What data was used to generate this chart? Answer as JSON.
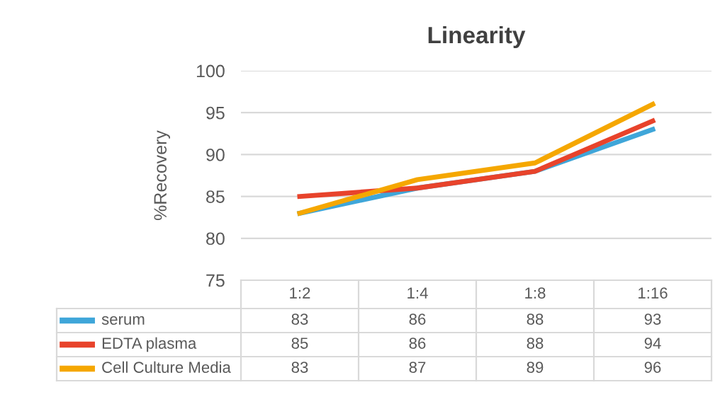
{
  "chart_data": {
    "type": "line",
    "title": "Linearity",
    "ylabel": "%Recovery",
    "categories": [
      "1:2",
      "1:4",
      "1:8",
      "1:16"
    ],
    "series": [
      {
        "name": "serum",
        "color": "#3fa6d9",
        "values": [
          83,
          86,
          88,
          93
        ]
      },
      {
        "name": "EDTA plasma",
        "color": "#e8432b",
        "values": [
          85,
          86,
          88,
          94
        ]
      },
      {
        "name": "Cell Culture Media",
        "color": "#f5a700",
        "values": [
          83,
          87,
          89,
          96
        ]
      }
    ],
    "ylim": [
      75,
      100
    ],
    "yticks": [
      75,
      80,
      85,
      90,
      95,
      100
    ],
    "grid": "y",
    "legend": "bottom",
    "data_labels": true,
    "marker": "none",
    "line_style": "solid"
  }
}
